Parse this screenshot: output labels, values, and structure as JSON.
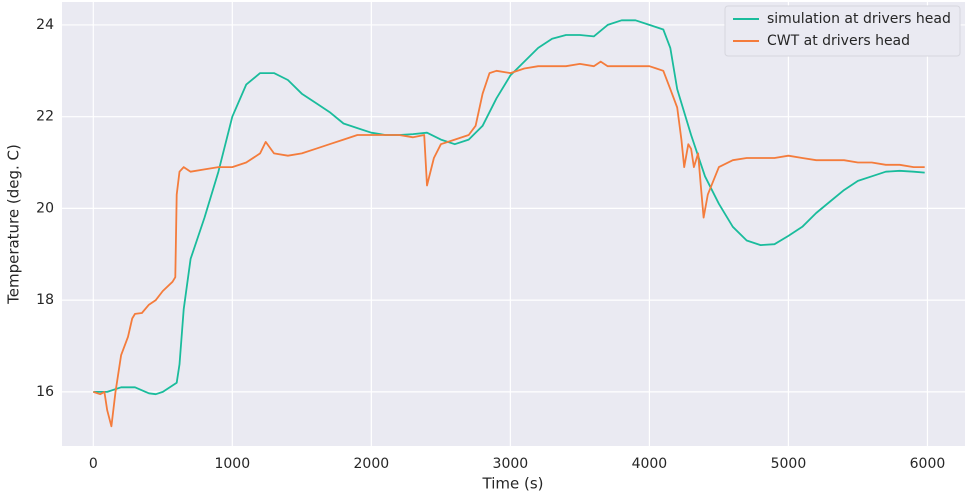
{
  "chart_data": {
    "type": "line",
    "xlabel": "Time (s)",
    "ylabel": "Temperature (deg. C)",
    "xlim": [
      -225,
      6270
    ],
    "ylim": [
      14.82,
      24.5
    ],
    "xticks": [
      0,
      1000,
      2000,
      3000,
      4000,
      5000,
      6000
    ],
    "yticks": [
      16,
      18,
      20,
      22,
      24
    ],
    "grid": true,
    "legend": "upper right",
    "series": [
      {
        "name": "simulation at drivers head",
        "color": "#1abc9c",
        "x": [
          0,
          100,
          200,
          300,
          400,
          450,
          500,
          600,
          620,
          650,
          700,
          800,
          900,
          1000,
          1100,
          1200,
          1300,
          1400,
          1500,
          1600,
          1700,
          1800,
          1900,
          2000,
          2100,
          2200,
          2300,
          2400,
          2500,
          2600,
          2700,
          2800,
          2900,
          3000,
          3100,
          3200,
          3300,
          3400,
          3500,
          3600,
          3700,
          3800,
          3900,
          4000,
          4100,
          4150,
          4200,
          4300,
          4400,
          4500,
          4600,
          4700,
          4800,
          4900,
          5000,
          5100,
          5200,
          5300,
          5400,
          5500,
          5600,
          5700,
          5800,
          5900,
          5980
        ],
        "values": [
          16.0,
          16.0,
          16.1,
          16.1,
          15.97,
          15.95,
          16.0,
          16.2,
          16.6,
          17.8,
          18.9,
          19.8,
          20.8,
          22.0,
          22.7,
          22.95,
          22.95,
          22.8,
          22.5,
          22.3,
          22.1,
          21.85,
          21.75,
          21.65,
          21.6,
          21.6,
          21.62,
          21.65,
          21.5,
          21.4,
          21.5,
          21.8,
          22.4,
          22.9,
          23.2,
          23.5,
          23.7,
          23.78,
          23.78,
          23.75,
          24.0,
          24.1,
          24.1,
          24.0,
          23.9,
          23.5,
          22.6,
          21.6,
          20.7,
          20.1,
          19.6,
          19.3,
          19.2,
          19.22,
          19.4,
          19.6,
          19.9,
          20.15,
          20.4,
          20.6,
          20.7,
          20.8,
          20.82,
          20.8,
          20.78
        ]
      },
      {
        "name": "CWT at drivers head",
        "color": "#f47c3c",
        "x": [
          0,
          50,
          80,
          100,
          130,
          160,
          200,
          250,
          280,
          300,
          350,
          400,
          450,
          500,
          570,
          590,
          600,
          620,
          650,
          700,
          800,
          900,
          1000,
          1100,
          1200,
          1240,
          1300,
          1400,
          1500,
          1600,
          1700,
          1800,
          1900,
          2000,
          2100,
          2200,
          2300,
          2380,
          2400,
          2450,
          2500,
          2600,
          2700,
          2750,
          2800,
          2850,
          2900,
          3000,
          3100,
          3200,
          3300,
          3400,
          3500,
          3600,
          3650,
          3700,
          3800,
          3900,
          4000,
          4050,
          4100,
          4150,
          4200,
          4230,
          4250,
          4280,
          4300,
          4320,
          4350,
          4370,
          4390,
          4420,
          4500,
          4600,
          4700,
          4800,
          4900,
          5000,
          5100,
          5200,
          5300,
          5400,
          5500,
          5600,
          5700,
          5800,
          5900,
          5980
        ],
        "values": [
          16.0,
          15.95,
          16.0,
          15.6,
          15.25,
          16.0,
          16.8,
          17.2,
          17.6,
          17.7,
          17.72,
          17.9,
          18.0,
          18.2,
          18.4,
          18.5,
          20.3,
          20.8,
          20.9,
          20.8,
          20.85,
          20.9,
          20.9,
          21.0,
          21.2,
          21.45,
          21.2,
          21.15,
          21.2,
          21.3,
          21.4,
          21.5,
          21.6,
          21.6,
          21.6,
          21.6,
          21.55,
          21.6,
          20.5,
          21.1,
          21.4,
          21.5,
          21.6,
          21.8,
          22.5,
          22.95,
          23.0,
          22.95,
          23.05,
          23.1,
          23.1,
          23.1,
          23.15,
          23.1,
          23.2,
          23.1,
          23.1,
          23.1,
          23.1,
          23.05,
          23.0,
          22.6,
          22.2,
          21.5,
          20.9,
          21.4,
          21.3,
          20.9,
          21.2,
          20.5,
          19.8,
          20.3,
          20.9,
          21.05,
          21.1,
          21.1,
          21.1,
          21.15,
          21.1,
          21.05,
          21.05,
          21.05,
          21.0,
          21.0,
          20.95,
          20.95,
          20.9,
          20.9
        ]
      }
    ]
  }
}
